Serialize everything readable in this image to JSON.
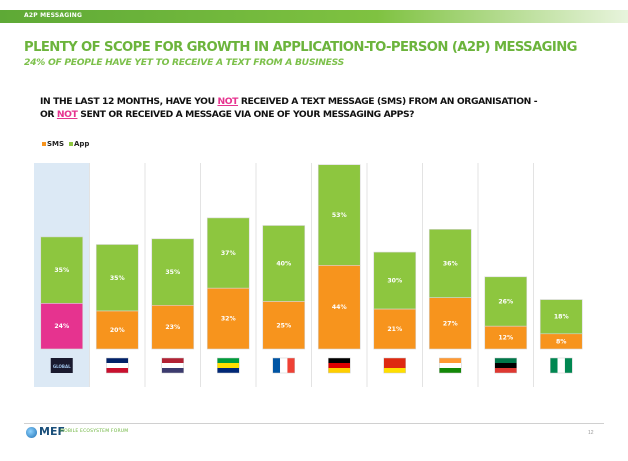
{
  "header": {
    "section": "A2P MESSAGING"
  },
  "title": "PLENTY OF SCOPE FOR GROWTH IN APPLICATION-TO-PERSON (A2P) MESSAGING",
  "subtitle": "24% OF PEOPLE HAVE YET TO RECEIVE A TEXT FROM A BUSINESS",
  "question": {
    "p1": "IN THE LAST 12 MONTHS, HAVE YOU ",
    "not1": "NOT",
    "p2": " RECEIVED A TEXT MESSAGE (SMS) FROM AN ORGANISATION -",
    "p3": "OR ",
    "not2": "NOT",
    "p4": " SENT OR RECEIVED A MESSAGE VIA ONE OF YOUR MESSAGING APPS?"
  },
  "colors": {
    "sms": "#f7941d",
    "app": "#8dc63f",
    "sms_global": "#e6338f",
    "global_bg": "#dce9f5",
    "bar_border": "#d8d8d8"
  },
  "chart_data": {
    "type": "bar",
    "stacked": true,
    "categories": [
      "GLOBAL",
      "UK",
      "US",
      "Brazil",
      "France",
      "Germany",
      "China",
      "India",
      "South Africa",
      "Nigeria"
    ],
    "series": [
      {
        "name": "SMS",
        "values": [
          24,
          20,
          23,
          32,
          25,
          44,
          21,
          27,
          12,
          8
        ]
      },
      {
        "name": "App",
        "values": [
          35,
          35,
          35,
          37,
          40,
          53,
          30,
          36,
          26,
          18
        ]
      }
    ],
    "labels": {
      "SMS": [
        "24%",
        "20%",
        "23%",
        "32%",
        "25%",
        "44%",
        "21%",
        "27%",
        "12%",
        "8%"
      ],
      "App": [
        "35%",
        "35%",
        "35%",
        "37%",
        "40%",
        "53%",
        "30%",
        "36%",
        "26%",
        "18%"
      ]
    },
    "legend": {
      "position": "top-left",
      "items": [
        "SMS",
        "App"
      ]
    },
    "ylim": [
      0,
      105
    ]
  },
  "footer": {
    "logo": "MEF",
    "forum": "MOBILE ECOSYSTEM FORUM",
    "page": "12"
  }
}
